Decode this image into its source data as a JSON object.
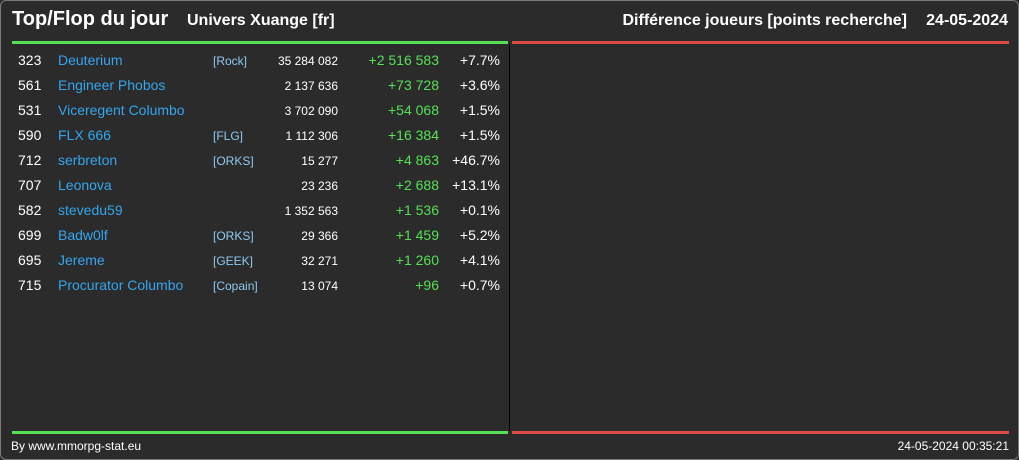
{
  "header": {
    "title": "Top/Flop du jour",
    "universe": "Univers Xuange [fr]",
    "metric": "Différence joueurs [points recherche]",
    "date": "24-05-2024"
  },
  "colors": {
    "top_accent": "#55e055",
    "flop_accent": "#dc4a48",
    "player_link": "#33a6ee",
    "alliance_tag": "#8fc8f0",
    "positive_diff": "#55e055"
  },
  "top": [
    {
      "rank": "323",
      "name": "Deuterium",
      "tag": "[Rock]",
      "points": "35 284 082",
      "diff": "+2 516 583",
      "pct": "+7.7%"
    },
    {
      "rank": "561",
      "name": "Engineer Phobos",
      "tag": "",
      "points": "2 137 636",
      "diff": "+73 728",
      "pct": "+3.6%"
    },
    {
      "rank": "531",
      "name": "Viceregent Columbo",
      "tag": "",
      "points": "3 702 090",
      "diff": "+54 068",
      "pct": "+1.5%"
    },
    {
      "rank": "590",
      "name": "FLX 666",
      "tag": "[FLG]",
      "points": "1 112 306",
      "diff": "+16 384",
      "pct": "+1.5%"
    },
    {
      "rank": "712",
      "name": "serbreton",
      "tag": "[ORKS]",
      "points": "15 277",
      "diff": "+4 863",
      "pct": "+46.7%"
    },
    {
      "rank": "707",
      "name": "Leonova",
      "tag": "",
      "points": "23 236",
      "diff": "+2 688",
      "pct": "+13.1%"
    },
    {
      "rank": "582",
      "name": "stevedu59",
      "tag": "",
      "points": "1 352 563",
      "diff": "+1 536",
      "pct": "+0.1%"
    },
    {
      "rank": "699",
      "name": "Badw0lf",
      "tag": "[ORKS]",
      "points": "29 366",
      "diff": "+1 459",
      "pct": "+5.2%"
    },
    {
      "rank": "695",
      "name": "Jereme",
      "tag": "[GEEK]",
      "points": "32 271",
      "diff": "+1 260",
      "pct": "+4.1%"
    },
    {
      "rank": "715",
      "name": "Procurator Columbo",
      "tag": "[Copain]",
      "points": "13 074",
      "diff": "+96",
      "pct": "+0.7%"
    }
  ],
  "flop": [],
  "footer": {
    "credit": "By www.mmorpg-stat.eu",
    "timestamp": "24-05-2024 00:35:21"
  }
}
